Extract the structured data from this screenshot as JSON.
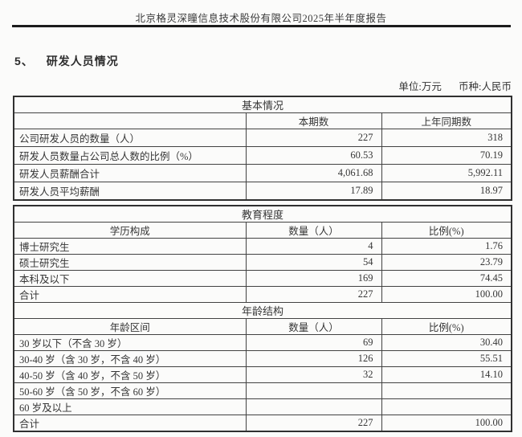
{
  "page": {
    "header_title": "北京格灵深瞳信息技术股份有限公司2025年半年度报告",
    "section_number": "5、",
    "section_title": "研发人员情况",
    "unit_label": "单位:万元",
    "currency_label": "币种:人民币"
  },
  "basic_table": {
    "title": "基本情况",
    "columns": [
      "",
      "本期数",
      "上年同期数"
    ],
    "rows": [
      {
        "label": "公司研发人员的数量（人）",
        "current": "227",
        "prior": "318"
      },
      {
        "label": "研发人员数量占公司总人数的比例（%）",
        "current": "60.53",
        "prior": "70.19"
      },
      {
        "label": "研发人员薪酬合计",
        "current": "4,061.68",
        "prior": "5,992.11"
      },
      {
        "label": "研发人员平均薪酬",
        "current": "17.89",
        "prior": "18.97"
      }
    ]
  },
  "education_section": {
    "title": "教育程度",
    "columns": [
      "学历构成",
      "数量（人）",
      "比例(%)"
    ],
    "rows": [
      {
        "label": "博士研究生",
        "count": "4",
        "ratio": "1.76"
      },
      {
        "label": "硕士研究生",
        "count": "54",
        "ratio": "23.79"
      },
      {
        "label": "本科及以下",
        "count": "169",
        "ratio": "74.45"
      },
      {
        "label": "合计",
        "count": "227",
        "ratio": "100.00"
      }
    ]
  },
  "age_section": {
    "title": "年龄结构",
    "columns": [
      "年龄区间",
      "数量（人）",
      "比例(%)"
    ],
    "rows": [
      {
        "label": "30 岁以下（不含 30 岁）",
        "count": "69",
        "ratio": "30.40"
      },
      {
        "label": "30-40 岁（含 30 岁，不含 40 岁）",
        "count": "126",
        "ratio": "55.51"
      },
      {
        "label": "40-50 岁（含 40 岁，不含 50 岁）",
        "count": "32",
        "ratio": "14.10"
      },
      {
        "label": "50-60 岁（含 50 岁，不含 60 岁）",
        "count": "",
        "ratio": ""
      },
      {
        "label": "60 岁及以上",
        "count": "",
        "ratio": ""
      },
      {
        "label": "合计",
        "count": "227",
        "ratio": "100.00"
      }
    ]
  }
}
